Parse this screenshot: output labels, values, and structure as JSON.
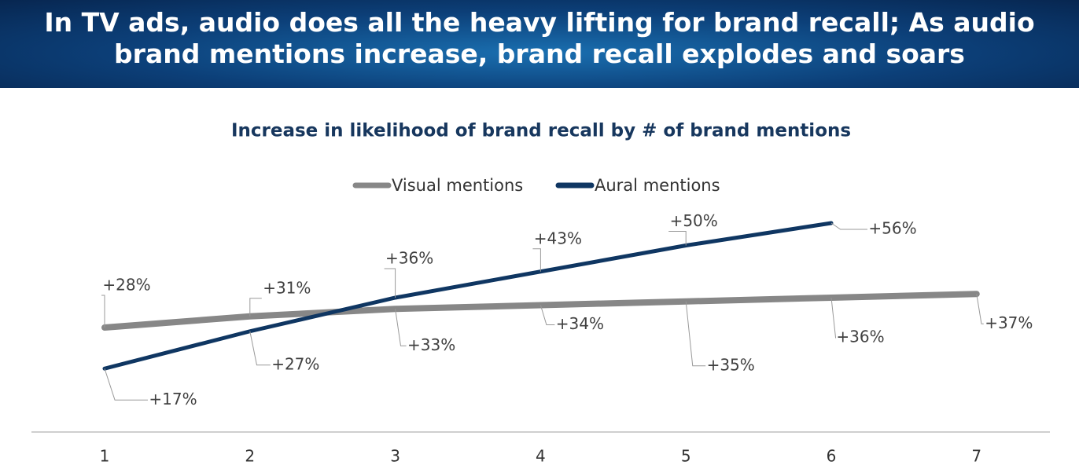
{
  "header": {
    "title_lines": [
      "In TV ads, audio does all the heavy lifting for brand recall; As audio",
      "brand mentions increase, brand recall explodes and soars"
    ]
  },
  "chart_data": {
    "type": "line",
    "title": "Increase in likelihood of brand recall by # of brand mentions",
    "categories": [
      "1",
      "2",
      "3",
      "4",
      "5",
      "6",
      "7"
    ],
    "series": [
      {
        "name": "Visual mentions",
        "color": "#878787",
        "values": [
          28,
          31,
          33,
          34,
          35,
          36,
          37
        ],
        "value_labels": [
          "+28%",
          "+31%",
          "+33%",
          "+34%",
          "+35%",
          "+36%",
          "+37%"
        ]
      },
      {
        "name": "Aural mentions",
        "color": "#0f3662",
        "values": [
          17,
          27,
          36,
          43,
          50,
          56,
          null
        ],
        "value_labels": [
          "+17%",
          "+27%",
          "+36%",
          "+43%",
          "+50%",
          "+56%",
          null
        ]
      }
    ],
    "ylim": [
      0,
      60
    ],
    "legend": "top"
  }
}
